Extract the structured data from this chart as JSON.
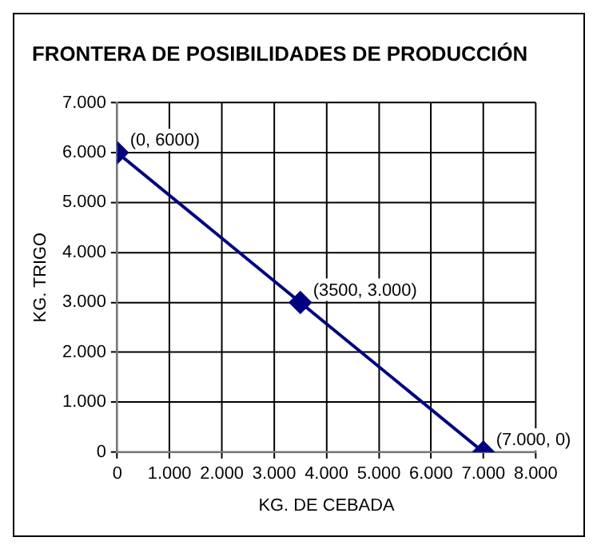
{
  "chart_data": {
    "type": "line",
    "title": "FRONTERA DE POSIBILIDADES DE PRODUCCIÓN",
    "xlabel": "KG. DE CEBADA",
    "ylabel": "KG. TRIGO",
    "x": [
      0,
      3500,
      7000
    ],
    "series": [
      {
        "color": "#000080",
        "values": [
          6000,
          3000,
          0
        ]
      }
    ],
    "xlim": [
      0,
      8000
    ],
    "xticks": [
      0,
      {
        "value": 1000,
        "label": "1.000"
      },
      {
        "value": 2000,
        "label": "2.000"
      },
      {
        "value": 3000,
        "label": "3.000"
      },
      {
        "value": 4000,
        "label": "4.000"
      },
      {
        "value": 5000,
        "label": "5.000"
      },
      {
        "value": 6000,
        "label": "6.000"
      },
      {
        "value": 7000,
        "label": "7.000"
      },
      {
        "value": 8000,
        "label": "8.000"
      }
    ],
    "ylim": [
      0,
      7000
    ],
    "yticks": [
      0,
      {
        "value": 1000,
        "label": "1.000"
      },
      {
        "value": 2000,
        "label": "2.000"
      },
      {
        "value": 3000,
        "label": "3.000"
      },
      {
        "value": 4000,
        "label": "4.000"
      },
      {
        "value": 5000,
        "label": "5.000"
      },
      {
        "value": 6000,
        "label": "6.000"
      },
      {
        "value": 7000,
        "label": "7.000"
      }
    ],
    "annotations": [
      {
        "text": "(0, 6000)",
        "x": 0,
        "y": 6000
      },
      {
        "text": "(3500, 3.000)",
        "x": 3500,
        "y": 3000
      },
      {
        "text": "(7.000, 0)",
        "x": 7000,
        "y": 0
      }
    ],
    "grid": true,
    "legend": false,
    "marker": "diamond",
    "line_style": "solid"
  }
}
